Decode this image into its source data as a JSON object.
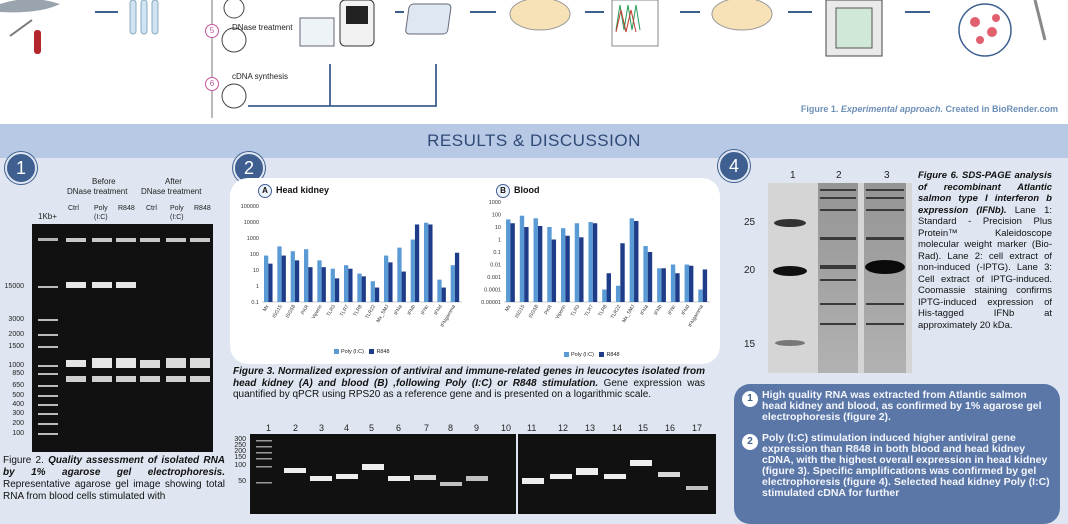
{
  "header": {
    "steps": [
      {
        "number": "5",
        "label": "DNase treatment"
      },
      {
        "number": "6",
        "label": "cDNA synthesis"
      }
    ],
    "figure1_caption_prefix": "Figure 1.",
    "figure1_caption_italic": "Experimental approach.",
    "figure1_caption_suffix": "Created in BioRender.com"
  },
  "section_title": "RESULTS & DISCUSSION",
  "badges": {
    "b1": "1",
    "b2": "2",
    "b4": "4"
  },
  "fig2": {
    "ladder_label": "1Kb+",
    "group_before": "Before",
    "group_before_2": "DNase treatment",
    "group_after": "After",
    "group_after_2": "DNase treatment",
    "lanes": [
      "Ctrl",
      "Poly",
      "R848",
      "Ctrl",
      "Poly",
      "R848"
    ],
    "lane_sub": [
      "",
      "(I:C)",
      "",
      "",
      "(I:C)",
      ""
    ],
    "ladder_marks": [
      "15000",
      "3000",
      "2000",
      "1500",
      "1000",
      "850",
      "650",
      "500",
      "400",
      "300",
      "200",
      "100"
    ],
    "caption_prefix": "Figure 2.",
    "caption_italic": "Quality assessment of isolated RNA by 1% agarose gel electrophoresis.",
    "caption_rest": "Representative agarose gel image showing total RNA from blood cells stimulated with"
  },
  "fig3": {
    "panel_a_letter": "A",
    "panel_a_title": "Head kidney",
    "panel_b_letter": "B",
    "panel_b_title": "Blood",
    "legend_poly": "Poly (I:C)",
    "legend_r848": "R848",
    "caption_prefix": "Figure 3.",
    "caption_italic": "Normalized expression of antiviral and immune-related genes in leucocytes isolated from head kidney (A) and blood (B) ,following Poly (I:C) or R848 stimulation.",
    "caption_rest": "Gene expression was quantified by qPCR using RPS20 as a reference gene and is presented on a logarithmic scale."
  },
  "chart_data": [
    {
      "type": "bar",
      "title": "Head kidney",
      "yscale": "log",
      "yticks": [
        "100000",
        "10000",
        "1000",
        "100",
        "10",
        "1",
        "0.1"
      ],
      "ylim": [
        0.1,
        100000
      ],
      "categories": [
        "Mx",
        "ISG15",
        "ISG58",
        "PKR",
        "Viperin",
        "TLR3",
        "TLR7",
        "TLR8",
        "TLR22",
        "Mx_SMJ",
        "IFNa",
        "IFNb",
        "IFNc",
        "IFNd",
        "IFNgamma"
      ],
      "series": [
        {
          "name": "Poly (I:C)",
          "color": "#5b9bd5",
          "values": [
            80,
            300,
            150,
            200,
            40,
            12,
            20,
            6,
            2,
            80,
            250,
            800,
            9000,
            2.5,
            20
          ]
        },
        {
          "name": "R848",
          "color": "#1f3c88",
          "values": [
            25,
            80,
            40,
            15,
            15,
            3,
            12,
            4,
            0.8,
            30,
            8,
            7000,
            7000,
            0.8,
            120
          ]
        }
      ]
    },
    {
      "type": "bar",
      "title": "Blood",
      "yscale": "log",
      "yticks": [
        "1000",
        "100",
        "10",
        "1",
        "0.1",
        "0.01",
        "0.001",
        "0.0001",
        "0.00001"
      ],
      "ylim": [
        1e-05,
        1000
      ],
      "categories": [
        "Mx",
        "ISG15",
        "ISG58",
        "PKR",
        "Viperin",
        "TLR3",
        "TLR7",
        "TLR8",
        "TLR22",
        "Mx_SMJ",
        "IFNa",
        "IFNb",
        "IFNc",
        "IFNd",
        "IFNgamma"
      ],
      "series": [
        {
          "name": "Poly (I:C)",
          "color": "#5b9bd5",
          "values": [
            40,
            80,
            50,
            10,
            8,
            20,
            25,
            0.0001,
            0.0002,
            50,
            0.3,
            0.005,
            0.01,
            0.01,
            0.0001
          ]
        },
        {
          "name": "R848",
          "color": "#1f3c88",
          "values": [
            20,
            10,
            12,
            1,
            2,
            1.5,
            20,
            0.002,
            0.5,
            30,
            0.1,
            0.005,
            0.002,
            0.008,
            0.004
          ]
        }
      ]
    }
  ],
  "fig4": {
    "lane_numbers": [
      "1",
      "2",
      "3",
      "4",
      "5",
      "6",
      "7",
      "8",
      "9",
      "10",
      "11",
      "12",
      "13",
      "14",
      "15",
      "16",
      "17"
    ],
    "ladder_marks": [
      "300",
      "250",
      "200",
      "150",
      "100",
      "50"
    ]
  },
  "fig6": {
    "lane_numbers": [
      "1",
      "2",
      "3"
    ],
    "mw_marks": [
      "25",
      "20",
      "15"
    ],
    "caption_prefix": "Figure 6.",
    "caption_italic": "SDS-PAGE analysis of recombinant Atlantic salmon type I interferon b expression (IFNb).",
    "caption_rest": "Lane 1: Standard - Precision Plus Protein™ Kaleidoscope molecular weight marker (Bio-Rad). Lane 2: cell extract of non-induced (-IPTG). Lane 3: Cell extract of IPTG-induced. Coomassie staining confirms IPTG-induced expression of His-tagged IFNb at approximately 20 kDa."
  },
  "summary": {
    "items": [
      {
        "number": "1",
        "text": "High quality RNA was extracted from Atlantic salmon head kidney and blood, as confirmed by 1% agarose gel electrophoresis (figure 2)."
      },
      {
        "number": "2",
        "text": "Poly (I:C) stimulation induced higher antiviral gene expression than R848 in both blood and head kidney cDNA, with the highest overall expression in head kidney (figure 3). Specific amplifications was confirmed by gel electrophoresis (figure 4). Selected head kidney Poly (I:C) stimulated cDNA for further"
      }
    ]
  }
}
